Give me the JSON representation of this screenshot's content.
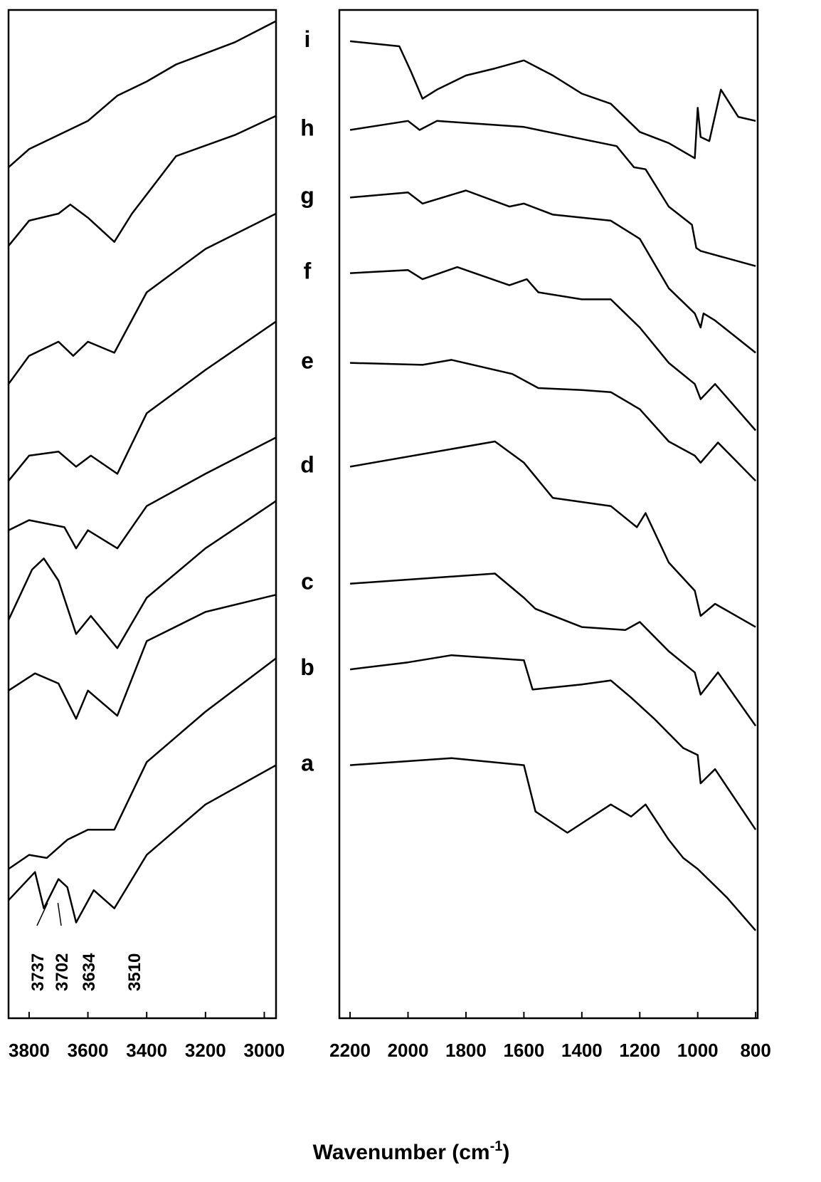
{
  "x_label": "Wavenumber (cm",
  "x_label_sup": "-1",
  "x_label_end": ")",
  "chart_data": [
    {
      "type": "line",
      "xlim": [
        3870,
        2960
      ],
      "ylim": [
        0,
        100
      ],
      "xticks": [
        3800,
        3600,
        3400,
        3200,
        3000
      ],
      "annotations": [
        3737,
        3702,
        3634,
        3510
      ],
      "series": [
        {
          "color": "#000000",
          "x": [
            3870,
            3780,
            3750,
            3700,
            3670,
            3640,
            3580,
            3510,
            3400,
            3200,
            2960
          ],
          "values": [
            11.7,
            14.5,
            10.9,
            13.8,
            13.0,
            9.5,
            12.7,
            10.9,
            16.2,
            21.2,
            25.1
          ]
        },
        {
          "color": "#000000",
          "x": [
            3870,
            3800,
            3740,
            3670,
            3600,
            3510,
            3400,
            3200,
            2960
          ],
          "values": [
            14.8,
            16.2,
            15.9,
            17.7,
            18.7,
            18.7,
            25.4,
            30.4,
            35.7
          ]
        },
        {
          "color": "#000000",
          "x": [
            3870,
            3780,
            3700,
            3640,
            3600,
            3500,
            3400,
            3200,
            2960
          ],
          "values": [
            32.5,
            34.2,
            33.2,
            29.7,
            32.5,
            30.0,
            37.4,
            40.3,
            42.0
          ]
        },
        {
          "color": "#000000",
          "x": [
            3870,
            3790,
            3750,
            3700,
            3640,
            3590,
            3500,
            3400,
            3200,
            2960
          ],
          "values": [
            39.5,
            44.5,
            45.6,
            43.4,
            38.1,
            39.9,
            36.7,
            41.7,
            46.6,
            51.3
          ]
        },
        {
          "color": "#000000",
          "x": [
            3870,
            3800,
            3680,
            3640,
            3600,
            3500,
            3400,
            3200,
            2960
          ],
          "values": [
            48.4,
            49.4,
            48.7,
            46.6,
            48.4,
            46.6,
            50.8,
            54.0,
            57.6
          ]
        },
        {
          "color": "#000000",
          "x": [
            3870,
            3800,
            3700,
            3640,
            3590,
            3500,
            3400,
            3200,
            2960
          ],
          "values": [
            53.3,
            55.8,
            56.2,
            54.7,
            55.8,
            54.0,
            60.0,
            64.3,
            69.1
          ]
        },
        {
          "color": "#000000",
          "x": [
            3870,
            3800,
            3700,
            3650,
            3600,
            3510,
            3400,
            3200,
            2960
          ],
          "values": [
            62.9,
            65.7,
            67.1,
            65.7,
            67.1,
            66.0,
            72.0,
            76.3,
            79.8
          ]
        },
        {
          "color": "#000000",
          "x": [
            3870,
            3800,
            3700,
            3660,
            3600,
            3510,
            3450,
            3300,
            3100,
            2960
          ],
          "values": [
            76.6,
            79.1,
            79.8,
            80.7,
            79.4,
            77.0,
            79.8,
            85.5,
            87.6,
            89.5
          ]
        },
        {
          "color": "#000000",
          "x": [
            3870,
            3800,
            3700,
            3600,
            3500,
            3400,
            3300,
            3100,
            2960
          ],
          "values": [
            84.4,
            86.2,
            87.6,
            89.0,
            91.5,
            92.9,
            94.6,
            96.8,
            98.9
          ]
        }
      ]
    },
    {
      "type": "line",
      "xlim": [
        2237,
        793
      ],
      "ylim": [
        0,
        100
      ],
      "xticks": [
        2200,
        2000,
        1800,
        1600,
        1400,
        1200,
        1000,
        800
      ],
      "series": [
        {
          "name": "a",
          "color": "#000000",
          "x": [
            2200,
            1850,
            1600,
            1560,
            1450,
            1300,
            1230,
            1180,
            1100,
            1050,
            1000,
            900,
            800
          ],
          "values": [
            25.1,
            25.8,
            25.1,
            20.5,
            18.4,
            21.2,
            20.0,
            21.2,
            17.7,
            15.9,
            14.8,
            12.0,
            8.7
          ]
        },
        {
          "name": "b",
          "color": "#000000",
          "x": [
            2200,
            2000,
            1850,
            1600,
            1570,
            1400,
            1300,
            1230,
            1150,
            1050,
            1000,
            990,
            940,
            800
          ],
          "values": [
            34.6,
            35.3,
            36.0,
            35.5,
            32.6,
            33.1,
            33.5,
            31.8,
            29.7,
            26.8,
            26.1,
            23.3,
            24.7,
            18.7
          ]
        },
        {
          "name": "c",
          "color": "#000000",
          "x": [
            2200,
            1700,
            1600,
            1560,
            1400,
            1250,
            1200,
            1100,
            1010,
            990,
            930,
            800
          ],
          "values": [
            43.1,
            44.1,
            41.7,
            40.6,
            38.8,
            38.5,
            39.3,
            36.4,
            34.3,
            32.1,
            34.3,
            29.0
          ]
        },
        {
          "name": "d",
          "color": "#000000",
          "x": [
            2200,
            1700,
            1600,
            1500,
            1300,
            1210,
            1180,
            1100,
            1010,
            990,
            940,
            800
          ],
          "values": [
            54.7,
            57.2,
            55.1,
            51.6,
            50.8,
            48.7,
            50.1,
            45.2,
            42.4,
            39.9,
            41.1,
            38.8
          ]
        },
        {
          "name": "e",
          "color": "#000000",
          "x": [
            2200,
            1950,
            1850,
            1640,
            1550,
            1400,
            1300,
            1200,
            1100,
            1010,
            990,
            930,
            800
          ],
          "values": [
            65.0,
            64.8,
            65.3,
            63.9,
            62.5,
            62.3,
            62.1,
            60.4,
            57.2,
            55.8,
            55.1,
            57.1,
            53.3
          ]
        },
        {
          "name": "f",
          "color": "#000000",
          "x": [
            2200,
            2000,
            1950,
            1830,
            1650,
            1590,
            1550,
            1400,
            1300,
            1200,
            1100,
            1010,
            990,
            940,
            800
          ],
          "values": [
            73.9,
            74.2,
            73.3,
            74.5,
            72.7,
            73.3,
            72.0,
            71.3,
            71.3,
            68.5,
            65.0,
            62.9,
            61.4,
            62.9,
            58.3
          ]
        },
        {
          "name": "g",
          "color": "#000000",
          "x": [
            2200,
            2000,
            1950,
            1800,
            1650,
            1600,
            1500,
            1300,
            1200,
            1100,
            1010,
            990,
            980,
            940,
            800
          ],
          "values": [
            81.4,
            81.9,
            80.8,
            82.1,
            80.5,
            80.8,
            79.7,
            79.1,
            77.3,
            72.4,
            69.9,
            68.5,
            69.9,
            69.2,
            66.0
          ]
        },
        {
          "name": "h",
          "color": "#000000",
          "x": [
            2200,
            2000,
            1960,
            1900,
            1600,
            1400,
            1280,
            1220,
            1180,
            1100,
            1020,
            1005,
            990,
            800
          ],
          "values": [
            88.1,
            89.0,
            88.1,
            89.0,
            88.4,
            87.2,
            86.5,
            84.4,
            84.2,
            80.5,
            78.7,
            76.4,
            76.1,
            74.6
          ]
        },
        {
          "name": "i",
          "color": "#000000",
          "x": [
            2200,
            2030,
            1990,
            1950,
            1900,
            1800,
            1700,
            1600,
            1500,
            1400,
            1300,
            1200,
            1100,
            1010,
            1000,
            990,
            960,
            920,
            860,
            800
          ],
          "values": [
            96.9,
            96.4,
            93.9,
            91.2,
            92.1,
            93.5,
            94.2,
            95.0,
            93.5,
            91.7,
            90.7,
            87.9,
            86.8,
            85.3,
            90.3,
            87.4,
            87.0,
            92.1,
            89.4,
            89.0
          ]
        }
      ]
    }
  ]
}
